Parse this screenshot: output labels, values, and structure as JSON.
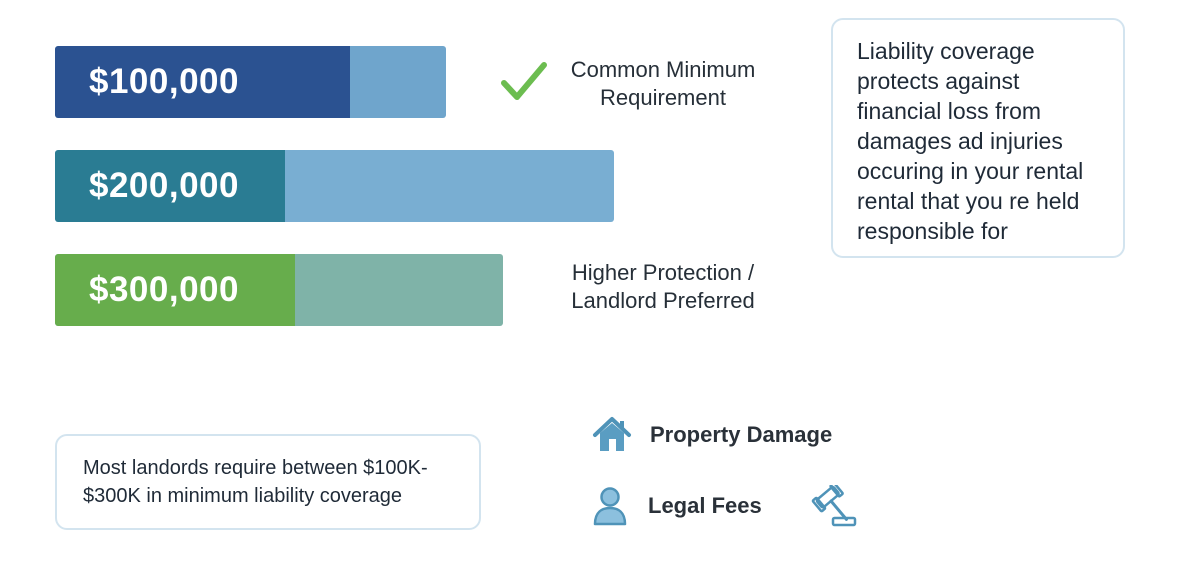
{
  "bars": [
    {
      "value": "$100,000"
    },
    {
      "value": "$200,000"
    },
    {
      "value": "$300,000"
    }
  ],
  "notes": {
    "minimum": "Common Minimum Requirement",
    "higher": "Higher Protection / Landlord Preferred"
  },
  "info_card": {
    "text": "Liability coverage\nprotects against\nfinancial loss from\ndamages ad injuries\noccuring in your rental\nrental that you re held\nresponsible for"
  },
  "summary_card": {
    "text": "Most landords require between $100K-\n$300K in minimum liability coverage"
  },
  "features": {
    "property": "Property Damage",
    "legal": "Legal Fees"
  },
  "icons": {
    "check": "check-icon",
    "house": "house-icon",
    "person": "person-icon",
    "gavel": "gavel-icon"
  },
  "colors": {
    "navy": "#2b5291",
    "teal": "#2a7c93",
    "green": "#67ad4c",
    "check_green": "#6cbd50",
    "icon_blue": "#4f93b8"
  }
}
